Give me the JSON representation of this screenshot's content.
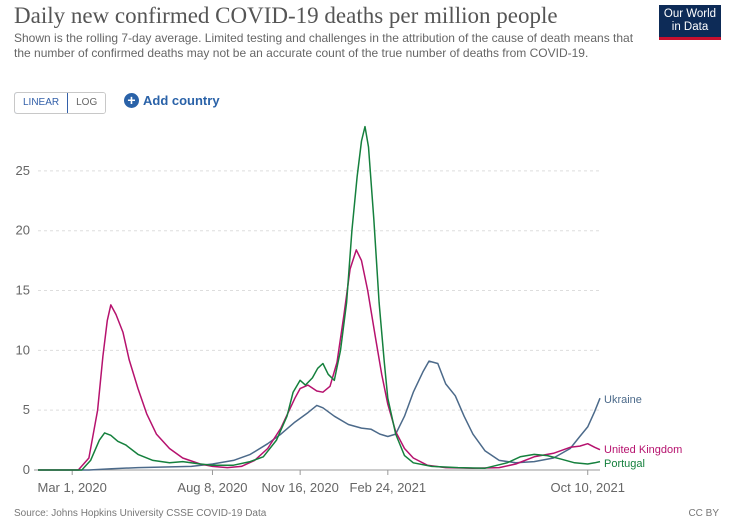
{
  "header": {
    "title": "Daily new confirmed COVID-19 deaths per million people",
    "subtitle": "Shown is the rolling 7-day average. Limited testing and challenges in the attribution of the cause of death means that the number of confirmed deaths may not be an accurate count of the true number of deaths from COVID-19.",
    "logo_line1": "Our World",
    "logo_line2": "in Data"
  },
  "controls": {
    "linear_label": "LINEAR",
    "log_label": "LOG",
    "add_country_label": "Add country"
  },
  "footer": {
    "source": "Source: Johns Hopkins University CSSE COVID-19 Data",
    "license": "CC BY"
  },
  "colors": {
    "Ukraine": "#4c6a8a",
    "United Kingdom": "#b6126e",
    "Portugal": "#15803d",
    "grid": "#dddddd",
    "axis": "#999999"
  },
  "chart_data": {
    "type": "line",
    "title": "Daily new confirmed COVID-19 deaths per million people",
    "xlabel": "",
    "ylabel": "",
    "ylim": [
      0,
      28
    ],
    "yticks": [
      0,
      5,
      10,
      15,
      20,
      25
    ],
    "xticks": [
      "Mar 1, 2020",
      "Aug 8, 2020",
      "Nov 16, 2020",
      "Feb 24, 2021",
      "Oct 10, 2021"
    ],
    "xrange": [
      "2020-01-22",
      "2021-10-24"
    ],
    "grid": "horizontal",
    "legend": "inline-right",
    "series": [
      {
        "name": "Ukraine",
        "points": [
          [
            "2020-01-22",
            0
          ],
          [
            "2020-03-20",
            0
          ],
          [
            "2020-04-15",
            0.1
          ],
          [
            "2020-05-15",
            0.2
          ],
          [
            "2020-06-15",
            0.25
          ],
          [
            "2020-07-15",
            0.3
          ],
          [
            "2020-08-08",
            0.5
          ],
          [
            "2020-09-01",
            0.8
          ],
          [
            "2020-09-20",
            1.3
          ],
          [
            "2020-10-10",
            2.2
          ],
          [
            "2020-10-25",
            3.0
          ],
          [
            "2020-11-10",
            4.0
          ],
          [
            "2020-11-25",
            4.8
          ],
          [
            "2020-12-05",
            5.4
          ],
          [
            "2020-12-12",
            5.2
          ],
          [
            "2020-12-25",
            4.5
          ],
          [
            "2021-01-10",
            3.8
          ],
          [
            "2021-01-25",
            3.5
          ],
          [
            "2021-02-05",
            3.4
          ],
          [
            "2021-02-15",
            3.0
          ],
          [
            "2021-02-24",
            2.8
          ],
          [
            "2021-03-05",
            3.0
          ],
          [
            "2021-03-15",
            4.5
          ],
          [
            "2021-03-25",
            6.5
          ],
          [
            "2021-04-05",
            8.2
          ],
          [
            "2021-04-12",
            9.1
          ],
          [
            "2021-04-22",
            8.9
          ],
          [
            "2021-05-01",
            7.2
          ],
          [
            "2021-05-12",
            6.2
          ],
          [
            "2021-05-22",
            4.5
          ],
          [
            "2021-06-01",
            3.0
          ],
          [
            "2021-06-15",
            1.6
          ],
          [
            "2021-07-01",
            0.8
          ],
          [
            "2021-07-20",
            0.6
          ],
          [
            "2021-08-10",
            0.7
          ],
          [
            "2021-09-01",
            1.0
          ],
          [
            "2021-09-20",
            1.8
          ],
          [
            "2021-10-01",
            2.8
          ],
          [
            "2021-10-10",
            3.6
          ],
          [
            "2021-10-18",
            4.9
          ],
          [
            "2021-10-24",
            6.0
          ]
        ]
      },
      {
        "name": "United Kingdom",
        "points": [
          [
            "2020-01-22",
            0
          ],
          [
            "2020-03-08",
            0
          ],
          [
            "2020-03-20",
            1.0
          ],
          [
            "2020-03-30",
            5.0
          ],
          [
            "2020-04-05",
            9.5
          ],
          [
            "2020-04-10",
            12.5
          ],
          [
            "2020-04-14",
            13.8
          ],
          [
            "2020-04-20",
            13.0
          ],
          [
            "2020-04-28",
            11.5
          ],
          [
            "2020-05-05",
            9.2
          ],
          [
            "2020-05-15",
            6.8
          ],
          [
            "2020-05-25",
            4.7
          ],
          [
            "2020-06-05",
            3.0
          ],
          [
            "2020-06-20",
            1.8
          ],
          [
            "2020-07-05",
            1.0
          ],
          [
            "2020-07-25",
            0.5
          ],
          [
            "2020-08-08",
            0.3
          ],
          [
            "2020-08-25",
            0.2
          ],
          [
            "2020-09-10",
            0.3
          ],
          [
            "2020-09-25",
            0.8
          ],
          [
            "2020-10-10",
            1.8
          ],
          [
            "2020-10-25",
            3.5
          ],
          [
            "2020-11-10",
            6.0
          ],
          [
            "2020-11-16",
            6.8
          ],
          [
            "2020-11-25",
            7.1
          ],
          [
            "2020-12-05",
            6.6
          ],
          [
            "2020-12-12",
            6.5
          ],
          [
            "2020-12-20",
            7.0
          ],
          [
            "2020-12-28",
            9.0
          ],
          [
            "2021-01-05",
            13.0
          ],
          [
            "2021-01-12",
            16.8
          ],
          [
            "2021-01-19",
            18.4
          ],
          [
            "2021-01-25",
            17.5
          ],
          [
            "2021-02-01",
            15.0
          ],
          [
            "2021-02-10",
            11.0
          ],
          [
            "2021-02-17",
            8.0
          ],
          [
            "2021-02-24",
            5.5
          ],
          [
            "2021-03-05",
            3.2
          ],
          [
            "2021-03-15",
            1.8
          ],
          [
            "2021-03-25",
            1.0
          ],
          [
            "2021-04-10",
            0.4
          ],
          [
            "2021-05-01",
            0.2
          ],
          [
            "2021-06-01",
            0.15
          ],
          [
            "2021-07-01",
            0.2
          ],
          [
            "2021-07-20",
            0.5
          ],
          [
            "2021-08-10",
            1.1
          ],
          [
            "2021-09-01",
            1.4
          ],
          [
            "2021-09-20",
            1.9
          ],
          [
            "2021-10-01",
            2.0
          ],
          [
            "2021-10-10",
            2.2
          ],
          [
            "2021-10-18",
            1.9
          ],
          [
            "2021-10-24",
            1.7
          ]
        ]
      },
      {
        "name": "Portugal",
        "points": [
          [
            "2020-01-22",
            0
          ],
          [
            "2020-03-12",
            0
          ],
          [
            "2020-03-22",
            0.8
          ],
          [
            "2020-04-01",
            2.5
          ],
          [
            "2020-04-07",
            3.1
          ],
          [
            "2020-04-14",
            2.9
          ],
          [
            "2020-04-22",
            2.4
          ],
          [
            "2020-05-01",
            2.1
          ],
          [
            "2020-05-15",
            1.3
          ],
          [
            "2020-06-01",
            0.8
          ],
          [
            "2020-06-20",
            0.6
          ],
          [
            "2020-07-05",
            0.7
          ],
          [
            "2020-07-25",
            0.5
          ],
          [
            "2020-08-08",
            0.4
          ],
          [
            "2020-09-01",
            0.4
          ],
          [
            "2020-09-20",
            0.7
          ],
          [
            "2020-10-05",
            1.1
          ],
          [
            "2020-10-20",
            2.5
          ],
          [
            "2020-11-01",
            4.5
          ],
          [
            "2020-11-08",
            6.5
          ],
          [
            "2020-11-16",
            7.5
          ],
          [
            "2020-11-22",
            7.1
          ],
          [
            "2020-11-30",
            7.7
          ],
          [
            "2020-12-06",
            8.5
          ],
          [
            "2020-12-12",
            8.9
          ],
          [
            "2020-12-18",
            8.0
          ],
          [
            "2020-12-25",
            7.5
          ],
          [
            "2021-01-01",
            10.0
          ],
          [
            "2021-01-08",
            14.0
          ],
          [
            "2021-01-14",
            20.0
          ],
          [
            "2021-01-20",
            24.5
          ],
          [
            "2021-01-25",
            27.5
          ],
          [
            "2021-01-29",
            28.7
          ],
          [
            "2021-02-02",
            27.0
          ],
          [
            "2021-02-08",
            21.0
          ],
          [
            "2021-02-14",
            14.0
          ],
          [
            "2021-02-20",
            9.0
          ],
          [
            "2021-02-24",
            6.0
          ],
          [
            "2021-03-05",
            3.0
          ],
          [
            "2021-03-15",
            1.2
          ],
          [
            "2021-03-25",
            0.6
          ],
          [
            "2021-04-15",
            0.3
          ],
          [
            "2021-05-15",
            0.2
          ],
          [
            "2021-06-15",
            0.15
          ],
          [
            "2021-07-10",
            0.6
          ],
          [
            "2021-07-25",
            1.1
          ],
          [
            "2021-08-10",
            1.3
          ],
          [
            "2021-08-25",
            1.2
          ],
          [
            "2021-09-10",
            0.9
          ],
          [
            "2021-09-25",
            0.6
          ],
          [
            "2021-10-10",
            0.5
          ],
          [
            "2021-10-18",
            0.6
          ],
          [
            "2021-10-24",
            0.7
          ]
        ]
      }
    ]
  }
}
